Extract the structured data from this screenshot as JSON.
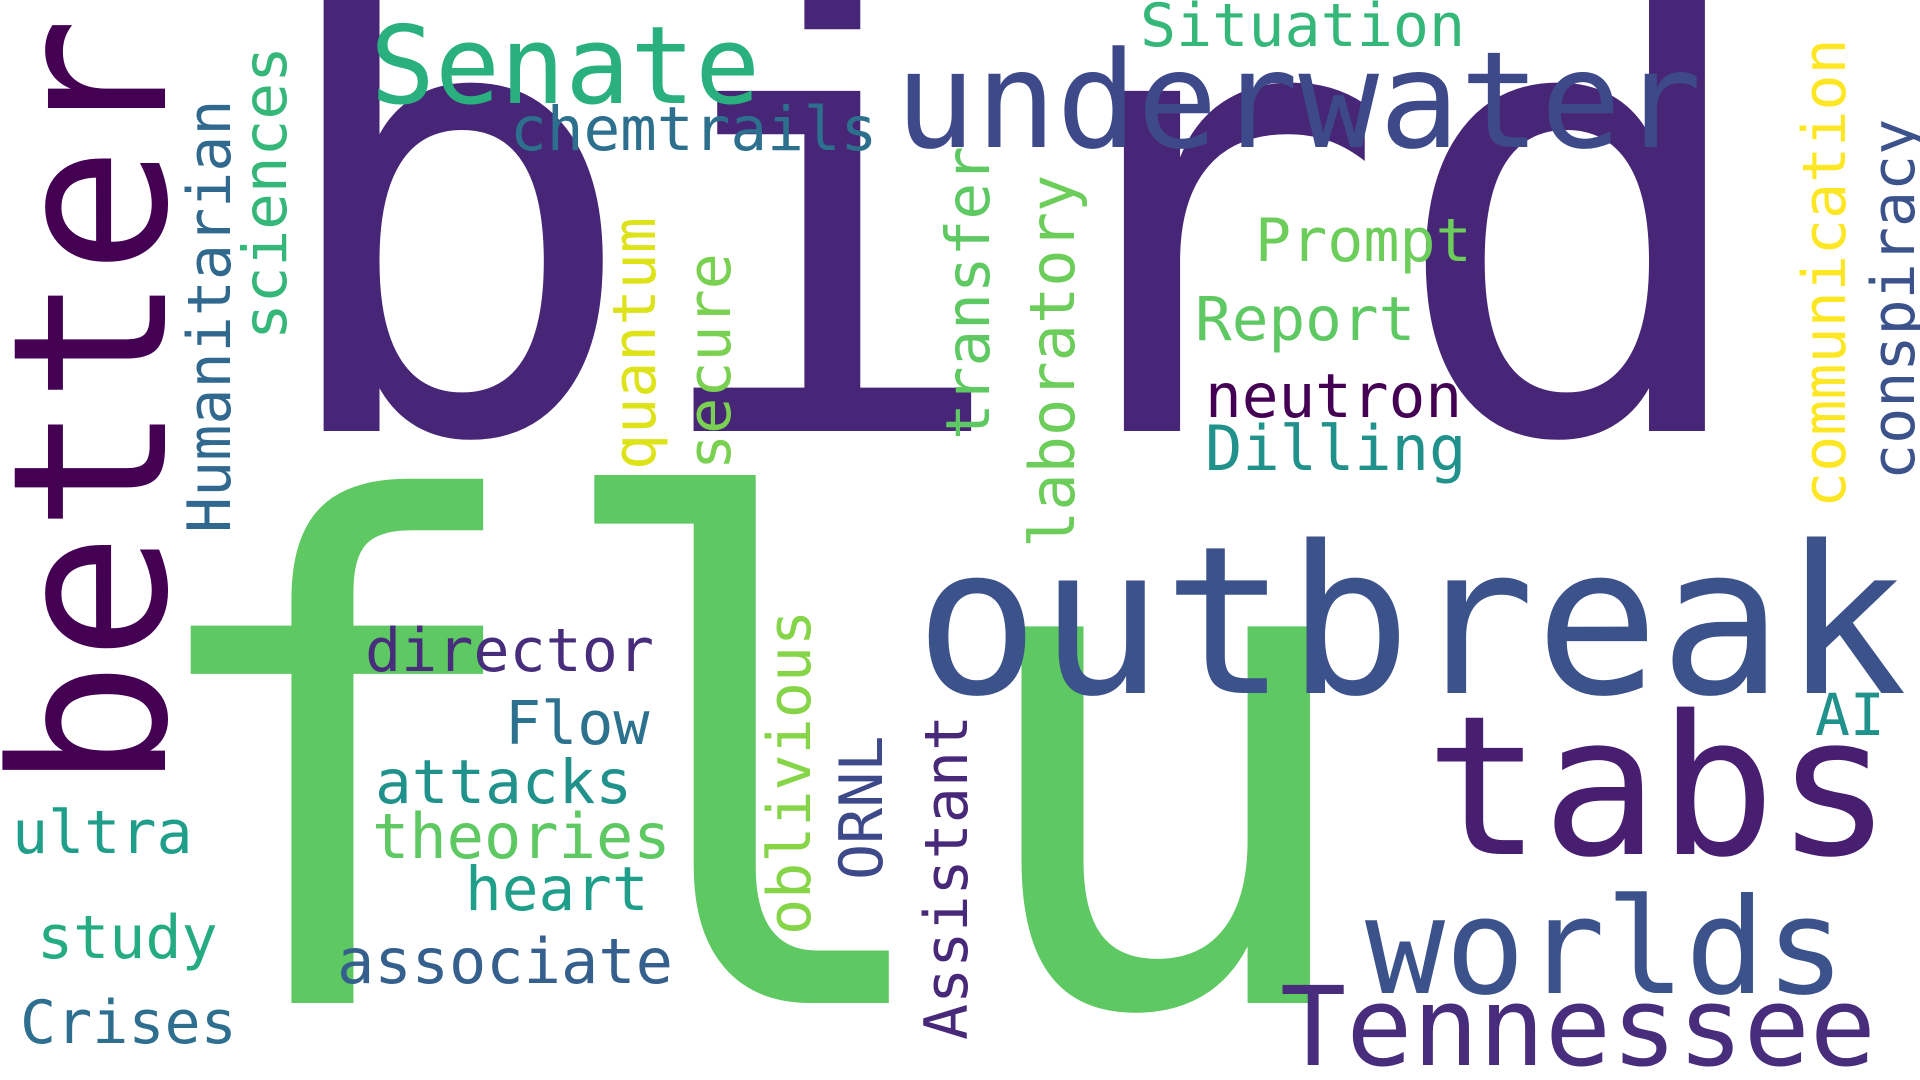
{
  "words": [
    {
      "id": "bird",
      "text": "bird",
      "color": "#482677"
    },
    {
      "id": "flu",
      "text": "flu",
      "color": "#5ec962"
    },
    {
      "id": "better",
      "text": "better",
      "color": "#440154"
    },
    {
      "id": "outbreak",
      "text": "outbreak",
      "color": "#3b528b"
    },
    {
      "id": "underwater",
      "text": "underwater",
      "color": "#3e4989"
    },
    {
      "id": "tabs",
      "text": "tabs",
      "color": "#481f70"
    },
    {
      "id": "senate",
      "text": "Senate",
      "color": "#2ab07f"
    },
    {
      "id": "worlds",
      "text": "worlds",
      "color": "#3b528b"
    },
    {
      "id": "tennessee",
      "text": "Tennessee",
      "color": "#472d7b"
    },
    {
      "id": "situation",
      "text": "Situation",
      "color": "#35b779"
    },
    {
      "id": "chemtrails",
      "text": "chemtrails",
      "color": "#2d708e"
    },
    {
      "id": "humanitarian",
      "text": "Humanitarian",
      "color": "#31688e"
    },
    {
      "id": "sciences",
      "text": "sciences",
      "color": "#35b779"
    },
    {
      "id": "quantum",
      "text": "quantum",
      "color": "#dde318"
    },
    {
      "id": "secure",
      "text": "secure",
      "color": "#7ad151"
    },
    {
      "id": "transfer",
      "text": "transfer",
      "color": "#5ec962"
    },
    {
      "id": "laboratory",
      "text": "laboratory",
      "color": "#6ccd5a"
    },
    {
      "id": "prompt",
      "text": "Prompt",
      "color": "#6ccd5a"
    },
    {
      "id": "report",
      "text": "Report",
      "color": "#5ec962"
    },
    {
      "id": "neutron",
      "text": "neutron",
      "color": "#440154"
    },
    {
      "id": "dilling",
      "text": "Dilling",
      "color": "#21918c"
    },
    {
      "id": "communication",
      "text": "communication",
      "color": "#fde725"
    },
    {
      "id": "conspiracy",
      "text": "conspiracy",
      "color": "#3b528b"
    },
    {
      "id": "director",
      "text": "director",
      "color": "#472d7b"
    },
    {
      "id": "flow",
      "text": "Flow",
      "color": "#2c728e"
    },
    {
      "id": "attacks",
      "text": "attacks",
      "color": "#21918c"
    },
    {
      "id": "theories",
      "text": "theories",
      "color": "#5ec962"
    },
    {
      "id": "heart",
      "text": "heart",
      "color": "#1f9e89"
    },
    {
      "id": "associate",
      "text": "associate",
      "color": "#355f8d"
    },
    {
      "id": "oblivious",
      "text": "oblivious",
      "color": "#86d549"
    },
    {
      "id": "ornl",
      "text": "ORNL",
      "color": "#3e4989"
    },
    {
      "id": "assistant",
      "text": "Assistant",
      "color": "#482878"
    },
    {
      "id": "ai",
      "text": "AI",
      "color": "#21918c"
    },
    {
      "id": "ultra",
      "text": "ultra",
      "color": "#1f9e89"
    },
    {
      "id": "study",
      "text": "study",
      "color": "#25ab82"
    },
    {
      "id": "crises",
      "text": "Crises",
      "color": "#2e6e8e"
    }
  ]
}
